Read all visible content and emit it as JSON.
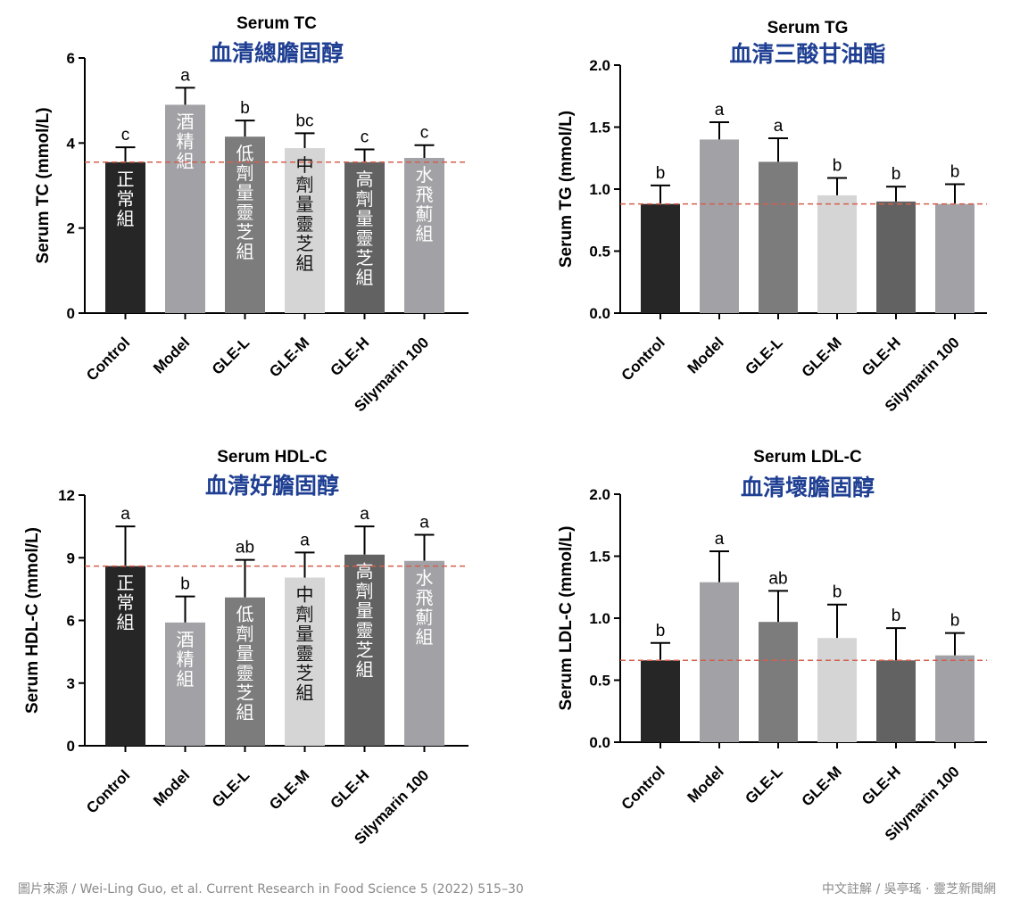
{
  "chart_data": [
    {
      "type": "bar",
      "title": "Serum TC",
      "subtitle": "血清總膽固醇",
      "ylabel": "Serum TC (mmol/L)",
      "xlabel": "",
      "ylim": [
        0,
        6
      ],
      "yticks": [
        "0",
        "2",
        "4",
        "6"
      ],
      "grid": false,
      "categories": [
        "Control",
        "Model",
        "GLE-L",
        "GLE-M",
        "GLE-H",
        "Silymarin 100"
      ],
      "values": [
        3.55,
        4.9,
        4.15,
        3.88,
        3.55,
        3.65
      ],
      "errors": [
        0.35,
        0.4,
        0.38,
        0.35,
        0.3,
        0.3
      ],
      "significance": [
        "c",
        "a",
        "b",
        "bc",
        "c",
        "c"
      ],
      "bar_labels": [
        "正常組",
        "酒精組",
        "低劑量靈芝組",
        "中劑量靈芝組",
        "高劑量靈芝組",
        "水飛薊組"
      ],
      "reference_line": 3.55,
      "colors": [
        "#262626",
        "#a2a1a6",
        "#7c7c7c",
        "#d5d5d5",
        "#626262",
        "#a2a1a6"
      ]
    },
    {
      "type": "bar",
      "title": "Serum TG",
      "subtitle": "血清三酸甘油酯",
      "ylabel": "Serum TG (mmol/L)",
      "xlabel": "",
      "ylim": [
        0,
        2
      ],
      "yticks": [
        "0.0",
        "0.5",
        "1.0",
        "1.5",
        "2.0"
      ],
      "grid": false,
      "categories": [
        "Control",
        "Model",
        "GLE-L",
        "GLE-M",
        "GLE-H",
        "Silymarin 100"
      ],
      "values": [
        0.88,
        1.4,
        1.22,
        0.95,
        0.9,
        0.88
      ],
      "errors": [
        0.15,
        0.14,
        0.19,
        0.14,
        0.12,
        0.16
      ],
      "significance": [
        "b",
        "a",
        "a",
        "b",
        "b",
        "b"
      ],
      "reference_line": 0.88,
      "colors": [
        "#262626",
        "#a2a1a6",
        "#7c7c7c",
        "#d5d5d5",
        "#626262",
        "#a2a1a6"
      ]
    },
    {
      "type": "bar",
      "title": "Serum HDL-C",
      "subtitle": "血清好膽固醇",
      "ylabel": "Serum HDL-C (mmol/L)",
      "xlabel": "",
      "ylim": [
        0,
        12
      ],
      "yticks": [
        "0",
        "3",
        "6",
        "9",
        "12"
      ],
      "grid": false,
      "categories": [
        "Control",
        "Model",
        "GLE-L",
        "GLE-M",
        "GLE-H",
        "Silymarin 100"
      ],
      "values": [
        8.6,
        5.9,
        7.1,
        8.05,
        9.15,
        8.85
      ],
      "errors": [
        1.9,
        1.25,
        1.8,
        1.2,
        1.35,
        1.25
      ],
      "significance": [
        "a",
        "b",
        "ab",
        "a",
        "a",
        "a"
      ],
      "bar_labels": [
        "正常組",
        "酒精組",
        "低劑量靈芝組",
        "中劑量靈芝組",
        "高劑量靈芝組",
        "水飛薊組"
      ],
      "reference_line": 8.6,
      "colors": [
        "#262626",
        "#a2a1a6",
        "#7c7c7c",
        "#d5d5d5",
        "#626262",
        "#a2a1a6"
      ]
    },
    {
      "type": "bar",
      "title": "Serum LDL-C",
      "subtitle": "血清壞膽固醇",
      "ylabel": "Serum LDL-C (mmol/L)",
      "xlabel": "",
      "ylim": [
        0,
        2
      ],
      "yticks": [
        "0.0",
        "0.5",
        "1.0",
        "1.5",
        "2.0"
      ],
      "grid": false,
      "categories": [
        "Control",
        "Model",
        "GLE-L",
        "GLE-M",
        "GLE-H",
        "Silymarin 100"
      ],
      "values": [
        0.66,
        1.29,
        0.97,
        0.84,
        0.66,
        0.7
      ],
      "errors": [
        0.14,
        0.25,
        0.25,
        0.27,
        0.26,
        0.18
      ],
      "significance": [
        "b",
        "a",
        "ab",
        "b",
        "b",
        "b"
      ],
      "reference_line": 0.66,
      "colors": [
        "#262626",
        "#a2a1a6",
        "#7c7c7c",
        "#d5d5d5",
        "#626262",
        "#a2a1a6"
      ]
    }
  ],
  "styles": {
    "title_color": "#000000",
    "subtitle_color": "#1f3f93",
    "reference_line_color": "#d45f4d",
    "axis_color": "#000000",
    "bar_label_light_color": "#ffffff",
    "bar_label_dark_color": "#111111"
  },
  "footer": {
    "source": "圖片來源 / Wei-Ling Guo, et al. Current Research in Food Science 5 (2022) 515–30",
    "credit": "中文註解 / 吳亭瑤 · 靈芝新聞網"
  }
}
